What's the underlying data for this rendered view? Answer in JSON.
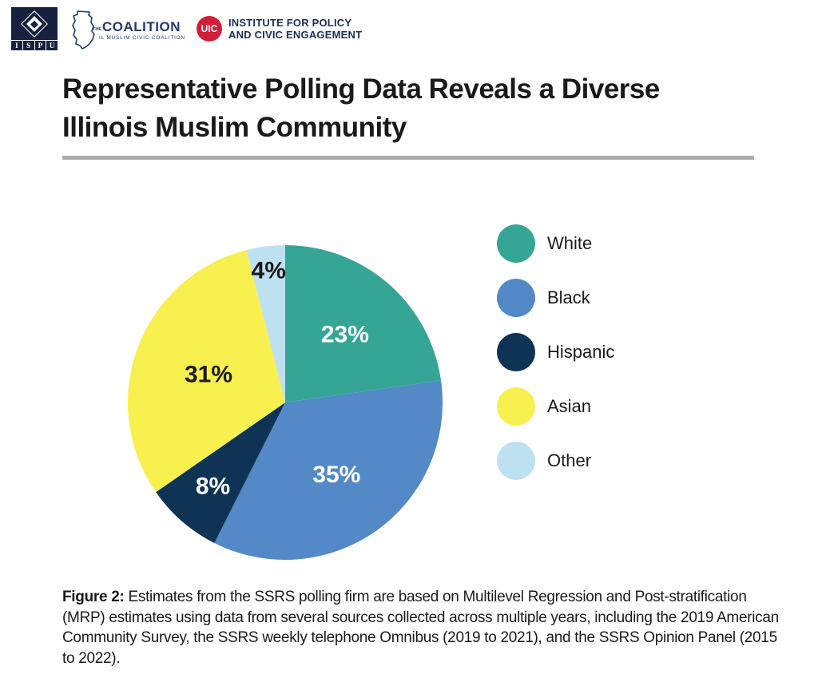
{
  "header": {
    "ispu": {
      "letters": [
        "I",
        "S",
        "P",
        "U"
      ],
      "bg_color": "#15213E"
    },
    "coalition": {
      "the": "THE",
      "name": "COALITION",
      "subtitle": "IL MUSLIM CIVIC COALITION",
      "color": "#223A70"
    },
    "uic": {
      "abbr": "UIC",
      "line1": "INSTITUTE FOR POLICY",
      "line2": "AND CIVIC ENGAGEMENT",
      "circle_color": "#D02038",
      "text_color": "#1C2E5A"
    }
  },
  "title": {
    "lines": [
      "Representative Polling Data Reveals a Diverse",
      "Illinois Muslim Community"
    ],
    "color": "#1A1A1A"
  },
  "divider_color": "#ACACAC",
  "chart_data": {
    "type": "pie",
    "title": "Representative Polling Data Reveals a Diverse Illinois Muslim Community",
    "categories": [
      "White",
      "Black",
      "Hispanic",
      "Asian",
      "Other"
    ],
    "values": [
      23,
      35,
      8,
      31,
      4
    ],
    "unit": "%",
    "start_angle_deg": -90,
    "direction": "clockwise",
    "legend_position": "right",
    "data_labels": "percent",
    "slices": [
      {
        "label": "White",
        "value": 23,
        "color": "#35A695",
        "label_color": "#FFFFFF",
        "label_radius": 0.58
      },
      {
        "label": "Black",
        "value": 35,
        "color": "#5289C6",
        "label_color": "#FFFFFF",
        "label_radius": 0.56
      },
      {
        "label": "Hispanic",
        "value": 8,
        "color": "#0E3355",
        "label_color": "#FFFFFF",
        "label_radius": 0.7
      },
      {
        "label": "Asian",
        "value": 31,
        "color": "#F8F04E",
        "label_color": "#1A1A1A",
        "label_radius": 0.52
      },
      {
        "label": "Other",
        "value": 4,
        "color": "#BEE1F1",
        "label_color": "#1A1A1A",
        "label_radius": 0.85
      }
    ]
  },
  "caption": {
    "prefix": "Figure 2:",
    "text": " Estimates from the SSRS polling firm are based on Multilevel Regression and Post-stratification (MRP) estimates using data from several sources collected across multiple years, including the 2019 American Community Survey, the SSRS weekly telephone Omnibus (2019 to 2021), and the SSRS Opinion Panel (2015 to 2022)."
  }
}
